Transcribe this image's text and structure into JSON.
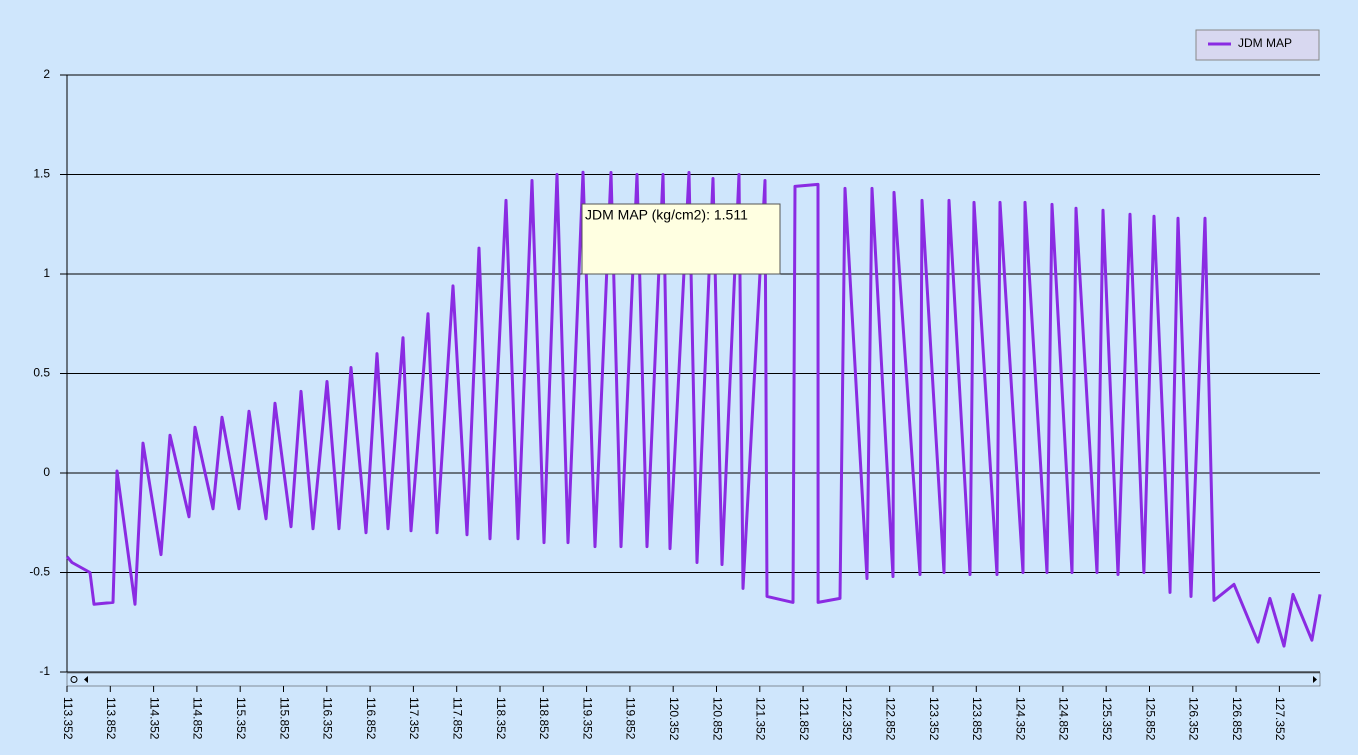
{
  "chart_data": {
    "type": "line",
    "x": [
      113.352,
      113.41,
      113.618,
      113.664,
      113.883,
      113.929,
      114.137,
      114.23,
      114.437,
      114.541,
      114.761,
      114.83,
      115.038,
      115.142,
      115.338,
      115.454,
      115.65,
      115.754,
      115.939,
      116.054,
      116.193,
      116.354,
      116.493,
      116.631,
      116.805,
      116.932,
      117.059,
      117.232,
      117.324,
      117.521,
      117.625,
      117.809,
      117.971,
      118.109,
      118.237,
      118.421,
      118.56,
      118.722,
      118.86,
      119.01,
      119.137,
      119.31,
      119.449,
      119.634,
      119.749,
      119.934,
      120.049,
      120.234,
      120.315,
      120.534,
      120.627,
      120.812,
      120.916,
      121.112,
      121.158,
      121.412,
      121.435,
      121.735,
      121.758,
      122.024,
      122.025,
      122.278,
      122.336,
      122.59,
      122.648,
      122.89,
      122.902,
      123.202,
      123.225,
      123.479,
      123.537,
      123.779,
      123.825,
      124.091,
      124.126,
      124.391,
      124.414,
      124.668,
      124.726,
      124.957,
      125.003,
      125.246,
      125.315,
      125.488,
      125.627,
      125.788,
      125.904,
      126.089,
      126.181,
      126.331,
      126.493,
      126.597,
      126.828,
      127.105,
      127.243,
      127.405,
      127.509,
      127.728,
      127.821
    ],
    "series": [
      {
        "name": "JDM MAP",
        "color": "#8a2be2",
        "values": [
          -0.42,
          -0.45,
          -0.5,
          -0.66,
          -0.65,
          0.01,
          -0.66,
          0.15,
          -0.41,
          0.19,
          -0.22,
          0.23,
          -0.18,
          0.28,
          -0.18,
          0.31,
          -0.23,
          0.35,
          -0.27,
          0.41,
          -0.28,
          0.46,
          -0.28,
          0.53,
          -0.3,
          0.6,
          -0.28,
          0.68,
          -0.29,
          0.8,
          -0.3,
          0.94,
          -0.31,
          1.13,
          -0.33,
          1.37,
          -0.33,
          1.47,
          -0.35,
          1.5,
          -0.35,
          1.511,
          -0.37,
          1.51,
          -0.37,
          1.5,
          -0.37,
          1.5,
          -0.38,
          1.51,
          -0.45,
          1.48,
          -0.46,
          1.5,
          -0.58,
          1.47,
          -0.62,
          -0.65,
          1.44,
          1.45,
          -0.65,
          -0.63,
          1.43,
          -0.53,
          1.43,
          -0.52,
          1.41,
          -0.51,
          1.37,
          -0.5,
          1.37,
          -0.51,
          1.36,
          -0.51,
          1.36,
          -0.5,
          1.36,
          -0.5,
          1.35,
          -0.5,
          1.33,
          -0.5,
          1.32,
          -0.51,
          1.3,
          -0.5,
          1.29,
          -0.6,
          1.28,
          -0.62,
          1.28,
          -0.64,
          -0.56,
          -0.85,
          -0.63,
          -0.87,
          -0.61,
          -0.84,
          -0.61
        ]
      }
    ],
    "xlim": [
      113.352,
      127.821
    ],
    "xticks": [
      113.352,
      113.852,
      114.352,
      114.852,
      115.352,
      115.852,
      116.352,
      116.852,
      117.352,
      117.852,
      118.352,
      118.852,
      119.352,
      119.852,
      120.352,
      120.852,
      121.352,
      121.852,
      122.352,
      122.852,
      123.352,
      123.852,
      124.352,
      124.852,
      125.352,
      125.852,
      126.352,
      126.852,
      127.352
    ],
    "ylim": [
      -1,
      2
    ],
    "yticks": [
      -1,
      -0.5,
      0,
      0.5,
      1,
      1.5,
      2
    ],
    "grid": true,
    "legend": "top-right",
    "tooltip": "JDM MAP (kg/cm2): 1.511"
  }
}
